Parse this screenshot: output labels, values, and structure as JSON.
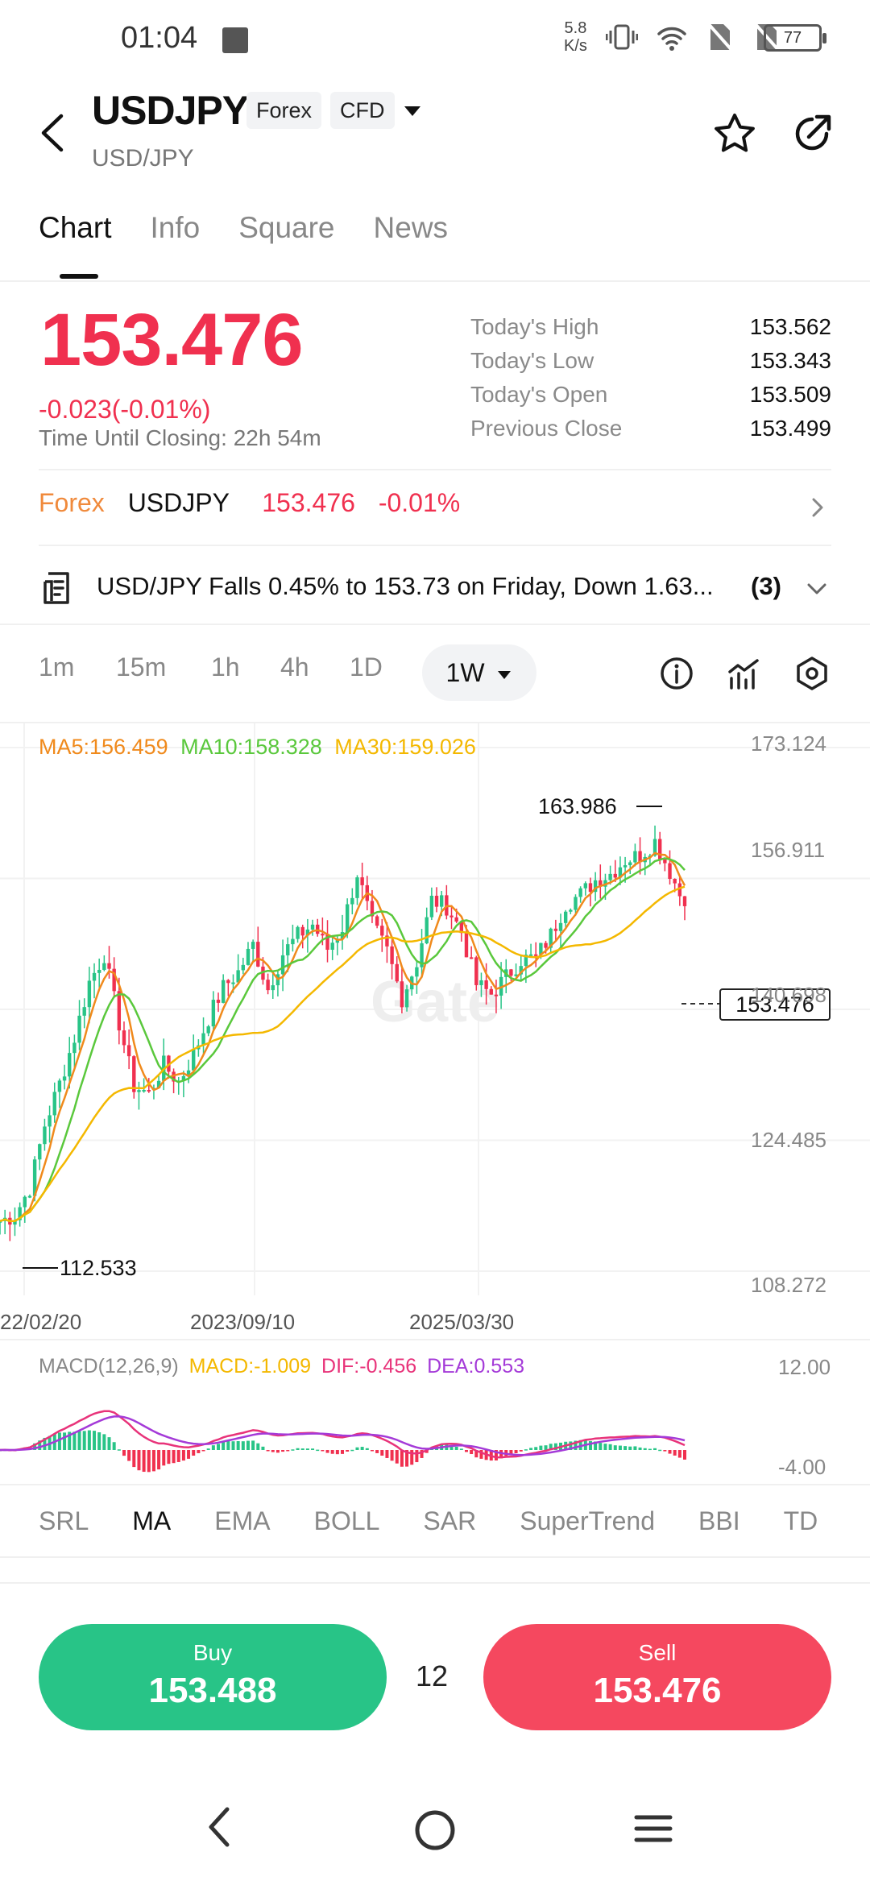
{
  "status_bar": {
    "time": "01:04",
    "speed_value": "5.8",
    "speed_unit": "K/s",
    "battery": "77"
  },
  "header": {
    "symbol": "USDJPY",
    "tags": [
      "Forex",
      "CFD"
    ],
    "subtitle": "USD/JPY"
  },
  "tabs": [
    "Chart",
    "Info",
    "Square",
    "News"
  ],
  "price": {
    "last": "153.476",
    "change": "-0.023(-0.01%)",
    "closing_label": "Time Until Closing:",
    "closing_value": "22h 54m"
  },
  "stats": [
    {
      "label": "Today's High",
      "value": "153.562"
    },
    {
      "label": "Today's Low",
      "value": "153.343"
    },
    {
      "label": "Today's Open",
      "value": "153.509"
    },
    {
      "label": "Previous Close",
      "value": "153.499"
    }
  ],
  "quote_row": {
    "market": "Forex",
    "symbol": "USDJPY",
    "price": "153.476",
    "change": "-0.01%"
  },
  "news": {
    "headline": "USD/JPY Falls 0.45% to 153.73 on Friday, Down 1.63...",
    "count": "(3)"
  },
  "intervals": [
    "1m",
    "15m",
    "1h",
    "4h",
    "1D"
  ],
  "selected_interval": "1W",
  "ma_legend": {
    "ma5": "MA5:156.459",
    "ma10": "MA10:158.328",
    "ma30": "MA30:159.026"
  },
  "price_axis": [
    "173.124",
    "156.911",
    "140.698",
    "124.485",
    "108.272"
  ],
  "date_axis": [
    "22/02/20",
    "2023/09/10",
    "2025/03/30"
  ],
  "markers": {
    "high": "163.986",
    "low": "112.533",
    "current": "153.476"
  },
  "macd": {
    "label": "MACD(12,26,9)",
    "macd": "MACD:-1.009",
    "dif": "DIF:-0.456",
    "dea": "DEA:0.553",
    "axis_top": "12.00",
    "axis_bottom": "-4.00"
  },
  "indicator_tabs": [
    "SRL",
    "MA",
    "EMA",
    "BOLL",
    "SAR",
    "SuperTrend",
    "BBI",
    "TD"
  ],
  "active_indicator": "MA",
  "trade": {
    "buy_label": "Buy",
    "buy_price": "153.488",
    "spread": "12",
    "sell_label": "Sell",
    "sell_price": "153.476"
  },
  "watermark": "Gate",
  "colors": {
    "up": "#28c487",
    "down": "#f0304f",
    "ma5": "#f08a1c",
    "ma10": "#5ac83c",
    "ma30": "#f4b800",
    "dif": "#e8337a",
    "dea": "#a43ad8",
    "forex": "#f08a3c"
  },
  "chart_data": {
    "type": "candlestick",
    "title": "",
    "x_ticks": [
      "22/02/20",
      "2023/09/10",
      "2025/03/30"
    ],
    "ylim": [
      108.272,
      173.124
    ],
    "y_ticks": [
      173.124,
      156.911,
      140.698,
      124.485,
      108.272
    ],
    "close_series_approx": [
      114.5,
      115.2,
      118.6,
      126.4,
      131.5,
      137.2,
      144.1,
      147.5,
      139.0,
      131.2,
      130.3,
      133.8,
      131.7,
      135.1,
      139.6,
      143.4,
      145.3,
      148.7,
      143.2,
      147.6,
      149.8,
      151.2,
      148.2,
      150.9,
      157.6,
      151.1,
      147.9,
      142.1,
      146.6,
      154.2,
      153.5,
      150.3,
      143.8,
      142.6,
      144.7,
      146.9,
      147.1,
      149.9,
      153.8,
      154.9,
      156.7,
      157.5,
      159.2,
      159.8,
      161.5,
      157.8,
      153.476
    ],
    "high_marker": 163.986,
    "low_marker": 112.533,
    "last_price": 153.476,
    "moving_averages": [
      {
        "name": "MA5",
        "last": 156.459
      },
      {
        "name": "MA10",
        "last": 158.328
      },
      {
        "name": "MA30",
        "last": 159.026
      }
    ],
    "macd": {
      "params": "12,26,9",
      "macd": -1.009,
      "dif": -0.456,
      "dea": 0.553,
      "ylim": [
        -4.0,
        12.0
      ]
    }
  }
}
